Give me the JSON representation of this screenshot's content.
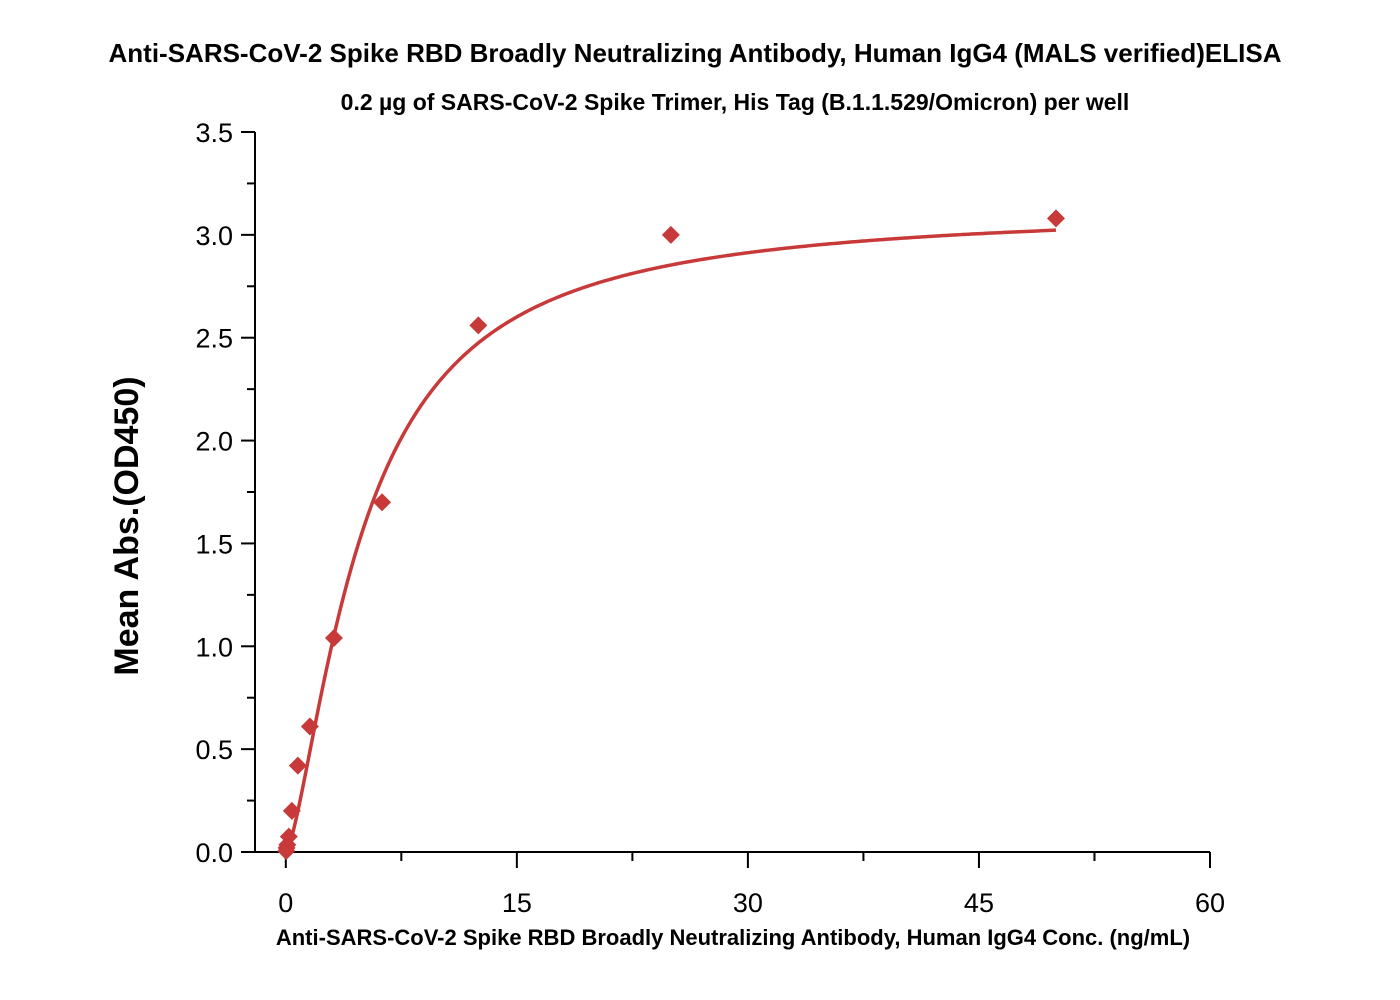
{
  "chart_data": {
    "type": "scatter",
    "title": "Anti-SARS-CoV-2 Spike RBD Broadly Neutralizing Antibody, Human IgG4 (MALS verified)ELISA",
    "subtitle": "0.2 µg of SARS-CoV-2 Spike Trimer, His Tag (B.1.1.529/Omicron) per well",
    "xlabel": "Anti-SARS-CoV-2 Spike RBD Broadly Neutralizing Antibody, Human IgG4 Conc. (ng/mL)",
    "ylabel": "Mean Abs.(OD450)",
    "xlim": [
      -2,
      60
    ],
    "ylim": [
      0,
      3.5
    ],
    "x_ticks": [
      "0",
      "15",
      "30",
      "45",
      "60"
    ],
    "y_ticks": [
      "0.0",
      "0.5",
      "1.0",
      "1.5",
      "2.0",
      "2.5",
      "3.0",
      "3.5"
    ],
    "grid": false,
    "legend": "none",
    "color": "#c83a3a",
    "series": [
      {
        "marker": "diamond",
        "x": [
          0.024,
          0.049,
          0.098,
          0.195,
          0.391,
          0.781,
          1.563,
          3.125,
          6.25,
          12.5,
          25,
          50
        ],
        "y": [
          0.005,
          0.02,
          0.035,
          0.075,
          0.2,
          0.42,
          0.61,
          1.04,
          1.7,
          2.56,
          3.0,
          3.08
        ]
      }
    ],
    "fit_curve": {
      "type": "4PL",
      "bottom": 0.0,
      "top": 3.13,
      "ec50": 5.0,
      "hill": 1.45
    }
  }
}
